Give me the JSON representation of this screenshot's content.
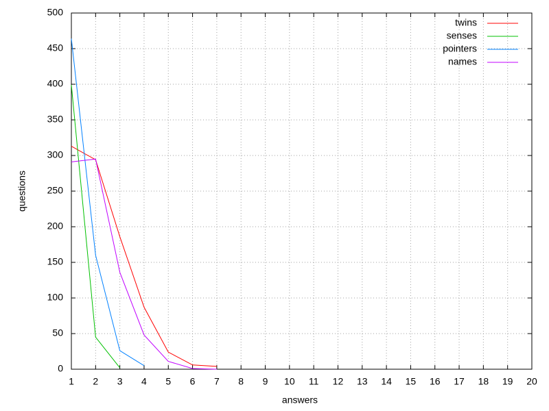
{
  "chart_data": {
    "type": "line",
    "xlabel": "answers",
    "ylabel": "questions",
    "x": [
      1,
      2,
      3,
      4,
      5,
      6,
      7
    ],
    "series": [
      {
        "name": "twins",
        "color": "#ff0000",
        "values": [
          313,
          294,
          186,
          87,
          24,
          6,
          4
        ]
      },
      {
        "name": "senses",
        "color": "#00c000",
        "values": [
          399,
          45,
          2,
          null,
          null,
          null,
          null
        ]
      },
      {
        "name": "pointers",
        "color": "#0080ff",
        "values": [
          464,
          160,
          26,
          5,
          null,
          null,
          null
        ]
      },
      {
        "name": "names",
        "color": "#c000ff",
        "values": [
          291,
          295,
          136,
          48,
          11,
          1,
          0
        ]
      }
    ],
    "xlim": [
      1,
      20
    ],
    "xticks": [
      1,
      2,
      3,
      4,
      5,
      6,
      7,
      8,
      9,
      10,
      11,
      12,
      13,
      14,
      15,
      16,
      17,
      18,
      19,
      20
    ],
    "ylim": [
      0,
      500
    ],
    "yticks": [
      0,
      50,
      100,
      150,
      200,
      250,
      300,
      350,
      400,
      450,
      500
    ],
    "grid": true,
    "legend": "top-right"
  }
}
